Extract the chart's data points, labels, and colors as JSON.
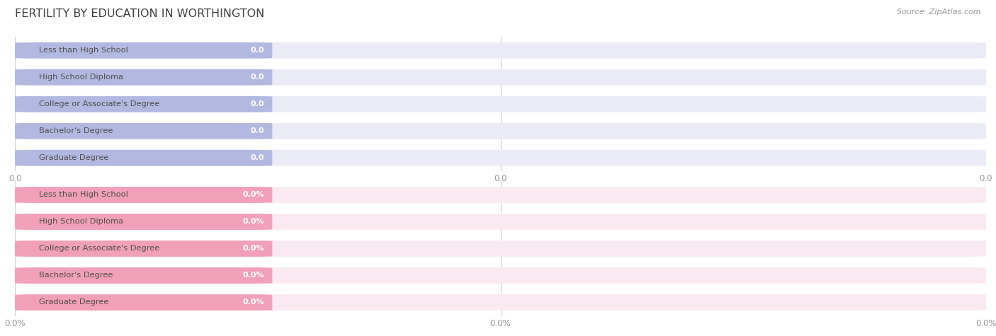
{
  "title": "FERTILITY BY EDUCATION IN WORTHINGTON",
  "source": "Source: ZipAtlas.com",
  "categories": [
    "Less than High School",
    "High School Diploma",
    "College or Associate's Degree",
    "Bachelor's Degree",
    "Graduate Degree"
  ],
  "top_values": [
    0.0,
    0.0,
    0.0,
    0.0,
    0.0
  ],
  "bottom_values": [
    0.0,
    0.0,
    0.0,
    0.0,
    0.0
  ],
  "top_bar_color": "#b3b8e0",
  "top_bar_bg": "#ebebf5",
  "bottom_bar_color": "#f0a0b8",
  "bottom_bar_bg": "#f8eaf0",
  "bg_color": "#ffffff",
  "title_color": "#404040",
  "tick_color": "#999999",
  "source_color": "#999999",
  "top_tick_labels": [
    "0.0",
    "0.0",
    "0.0"
  ],
  "bottom_tick_labels": [
    "0.0%",
    "0.0%",
    "0.0%"
  ]
}
